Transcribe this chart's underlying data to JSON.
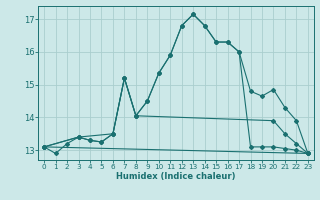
{
  "title": "",
  "xlabel": "Humidex (Indice chaleur)",
  "bg_color": "#cce8e8",
  "grid_color": "#aacece",
  "line_color": "#1a7070",
  "xlim": [
    -0.5,
    23.5
  ],
  "ylim": [
    12.7,
    17.4
  ],
  "yticks": [
    13,
    14,
    15,
    16,
    17
  ],
  "xticks": [
    0,
    1,
    2,
    3,
    4,
    5,
    6,
    7,
    8,
    9,
    10,
    11,
    12,
    13,
    14,
    15,
    16,
    17,
    18,
    19,
    20,
    21,
    22,
    23
  ],
  "series": [
    {
      "x": [
        0,
        1,
        2,
        3,
        4,
        5,
        6,
        7,
        8,
        9,
        10,
        11,
        12,
        13,
        14,
        15,
        16,
        17,
        18,
        19,
        20,
        21,
        22,
        23
      ],
      "y": [
        13.1,
        12.9,
        13.2,
        13.4,
        13.3,
        13.25,
        13.5,
        15.2,
        14.05,
        14.5,
        15.35,
        15.9,
        16.8,
        17.15,
        16.8,
        16.3,
        16.3,
        16.0,
        13.1,
        13.1,
        13.1,
        13.05,
        13.0,
        12.9
      ]
    },
    {
      "x": [
        0,
        3,
        6,
        7,
        8,
        9,
        10,
        11,
        12,
        13,
        14,
        15,
        16,
        17,
        18,
        19,
        20,
        21,
        22,
        23
      ],
      "y": [
        13.1,
        13.4,
        13.5,
        15.2,
        14.05,
        14.5,
        15.35,
        15.9,
        16.8,
        17.15,
        16.8,
        16.3,
        16.3,
        16.0,
        14.8,
        14.65,
        14.85,
        14.3,
        13.9,
        12.9
      ]
    },
    {
      "x": [
        0,
        3,
        4,
        5,
        6,
        7,
        8,
        20,
        21,
        22,
        23
      ],
      "y": [
        13.1,
        13.4,
        13.3,
        13.25,
        13.5,
        15.2,
        14.05,
        13.9,
        13.5,
        13.2,
        12.9
      ]
    },
    {
      "x": [
        0,
        23
      ],
      "y": [
        13.1,
        12.9
      ]
    }
  ]
}
